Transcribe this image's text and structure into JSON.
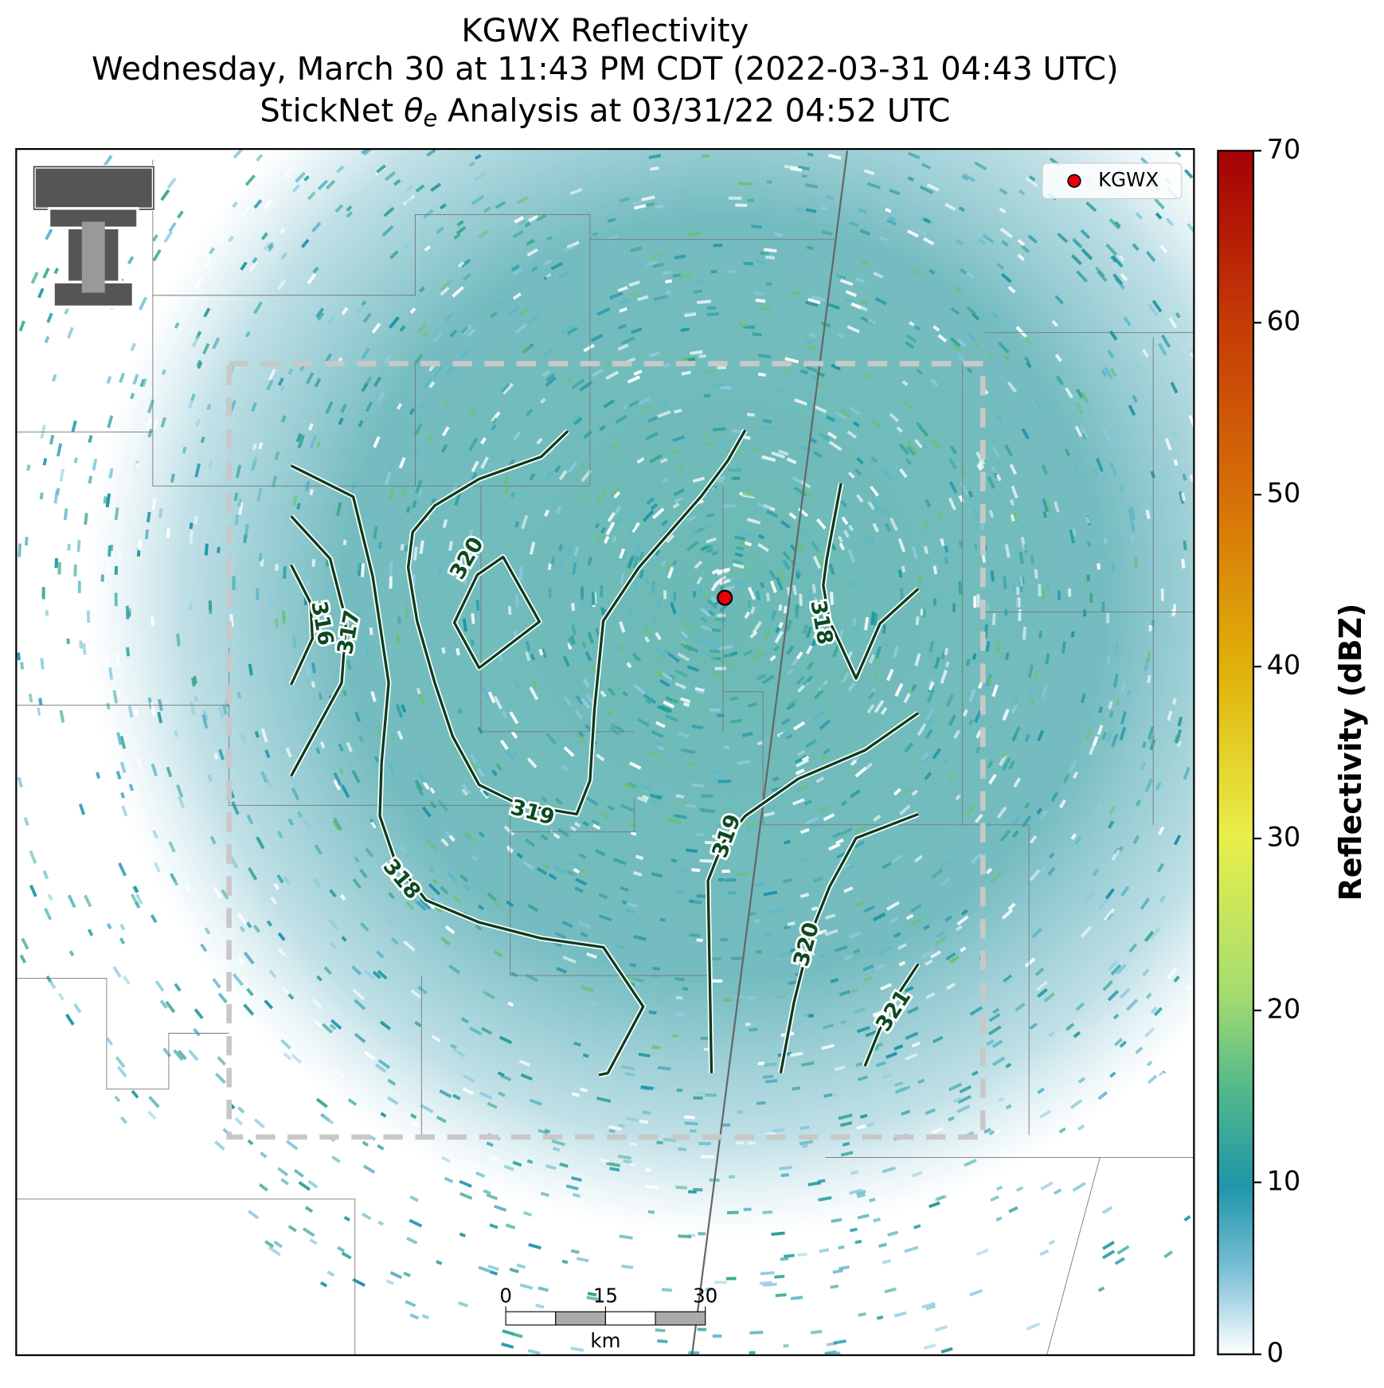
{
  "header": {
    "title": "KGWX Reflectivity",
    "subtitle": "Wednesday, March 30 at 11:43 PM CDT (2022-03-31 04:43 UTC)",
    "analysis": {
      "prefix": "StickNet ",
      "symbol": "θ",
      "subscript": "e",
      "suffix": " Analysis at 03/31/22 04:52 UTC"
    }
  },
  "legend": {
    "label": "KGWX",
    "color": "#e8000b"
  },
  "colorbar": {
    "label": "Reflectivity (dBZ)",
    "lim": [
      0,
      70
    ],
    "ticks": [
      0,
      10,
      20,
      30,
      40,
      50,
      60,
      70
    ]
  },
  "contours": [
    {
      "level": 316
    },
    {
      "level": 317
    },
    {
      "level": 320
    },
    {
      "level": 319
    },
    {
      "level": 318
    },
    {
      "level": 318
    },
    {
      "level": 319
    },
    {
      "level": 320
    },
    {
      "level": 321
    }
  ],
  "scale_bar": {
    "ticks": [
      0,
      15,
      30
    ],
    "unit": "km"
  }
}
